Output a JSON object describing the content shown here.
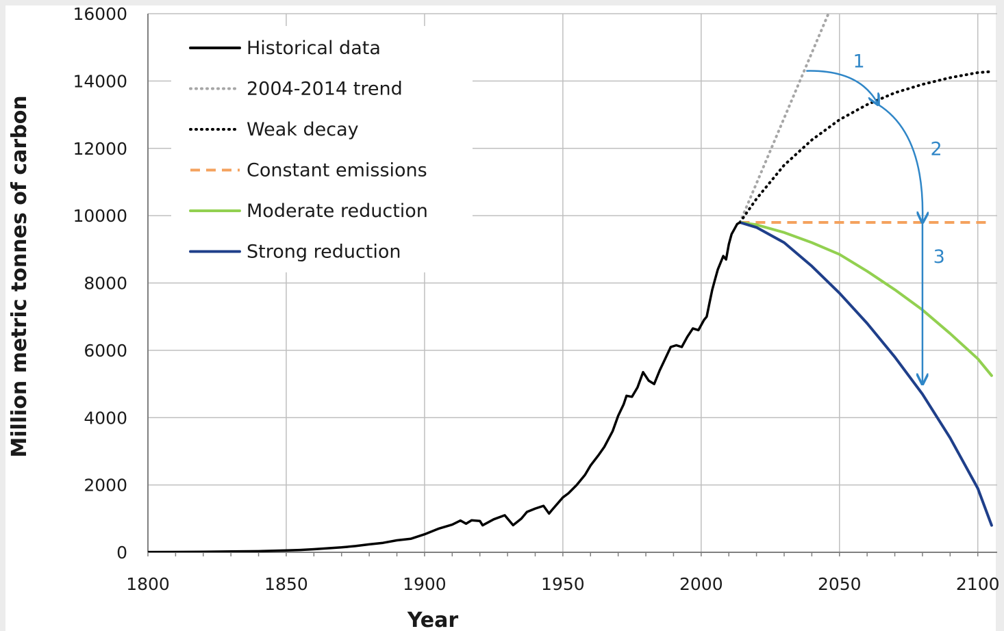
{
  "chart_data": {
    "type": "line",
    "title": "",
    "xlabel": "Year",
    "ylabel": "Million metric tonnes of carbon",
    "xlim": [
      1800,
      2107
    ],
    "ylim": [
      0,
      16000
    ],
    "x_ticks": [
      1800,
      1850,
      1900,
      1950,
      2000,
      2050,
      2100
    ],
    "y_ticks": [
      0,
      2000,
      4000,
      6000,
      8000,
      10000,
      12000,
      14000,
      16000
    ],
    "grid": true,
    "legend_position": "top-left",
    "series": [
      {
        "name": "Historical data",
        "style": "solid",
        "color": "#000000",
        "points": [
          [
            1800,
            8
          ],
          [
            1810,
            10
          ],
          [
            1820,
            14
          ],
          [
            1830,
            24
          ],
          [
            1840,
            33
          ],
          [
            1850,
            54
          ],
          [
            1855,
            70
          ],
          [
            1860,
            91
          ],
          [
            1865,
            120
          ],
          [
            1870,
            147
          ],
          [
            1875,
            185
          ],
          [
            1880,
            236
          ],
          [
            1885,
            280
          ],
          [
            1890,
            356
          ],
          [
            1895,
            400
          ],
          [
            1900,
            534
          ],
          [
            1905,
            700
          ],
          [
            1910,
            821
          ],
          [
            1913,
            943
          ],
          [
            1915,
            850
          ],
          [
            1917,
            950
          ],
          [
            1920,
            932
          ],
          [
            1921,
            800
          ],
          [
            1925,
            980
          ],
          [
            1929,
            1100
          ],
          [
            1932,
            805
          ],
          [
            1935,
            1000
          ],
          [
            1937,
            1200
          ],
          [
            1940,
            1300
          ],
          [
            1943,
            1380
          ],
          [
            1945,
            1150
          ],
          [
            1946,
            1250
          ],
          [
            1950,
            1630
          ],
          [
            1952,
            1750
          ],
          [
            1955,
            2000
          ],
          [
            1958,
            2300
          ],
          [
            1960,
            2577
          ],
          [
            1963,
            2900
          ],
          [
            1965,
            3130
          ],
          [
            1968,
            3600
          ],
          [
            1970,
            4053
          ],
          [
            1972,
            4400
          ],
          [
            1973,
            4650
          ],
          [
            1975,
            4620
          ],
          [
            1977,
            4900
          ],
          [
            1979,
            5350
          ],
          [
            1981,
            5100
          ],
          [
            1983,
            5000
          ],
          [
            1985,
            5400
          ],
          [
            1987,
            5750
          ],
          [
            1989,
            6100
          ],
          [
            1991,
            6150
          ],
          [
            1993,
            6100
          ],
          [
            1995,
            6400
          ],
          [
            1997,
            6650
          ],
          [
            1999,
            6600
          ],
          [
            2001,
            6900
          ],
          [
            2002,
            7000
          ],
          [
            2003,
            7400
          ],
          [
            2004,
            7800
          ],
          [
            2005,
            8100
          ],
          [
            2006,
            8400
          ],
          [
            2007,
            8600
          ],
          [
            2008,
            8800
          ],
          [
            2009,
            8700
          ],
          [
            2010,
            9150
          ],
          [
            2011,
            9450
          ],
          [
            2012,
            9600
          ],
          [
            2013,
            9750
          ],
          [
            2014,
            9800
          ]
        ]
      },
      {
        "name": "2004-2014 trend",
        "style": "dotted",
        "color": "#a6a6a6",
        "points": [
          [
            2014,
            9800
          ],
          [
            2046,
            16000
          ]
        ]
      },
      {
        "name": "Weak decay",
        "style": "dotted",
        "color": "#000000",
        "points": [
          [
            2014,
            9800
          ],
          [
            2020,
            10500
          ],
          [
            2030,
            11500
          ],
          [
            2040,
            12250
          ],
          [
            2050,
            12850
          ],
          [
            2060,
            13300
          ],
          [
            2070,
            13650
          ],
          [
            2080,
            13900
          ],
          [
            2090,
            14100
          ],
          [
            2100,
            14250
          ],
          [
            2105,
            14280
          ]
        ]
      },
      {
        "name": "Constant emissions",
        "style": "dashed",
        "color": "#f4a25e",
        "points": [
          [
            2014,
            9800
          ],
          [
            2105,
            9800
          ]
        ]
      },
      {
        "name": "Moderate reduction",
        "style": "solid",
        "color": "#92d050",
        "points": [
          [
            2014,
            9800
          ],
          [
            2020,
            9730
          ],
          [
            2030,
            9500
          ],
          [
            2040,
            9200
          ],
          [
            2050,
            8850
          ],
          [
            2060,
            8350
          ],
          [
            2070,
            7800
          ],
          [
            2080,
            7200
          ],
          [
            2090,
            6500
          ],
          [
            2100,
            5750
          ],
          [
            2105,
            5250
          ]
        ]
      },
      {
        "name": "Strong reduction",
        "style": "solid",
        "color": "#1f3f8a",
        "points": [
          [
            2014,
            9800
          ],
          [
            2020,
            9650
          ],
          [
            2030,
            9200
          ],
          [
            2040,
            8500
          ],
          [
            2050,
            7700
          ],
          [
            2060,
            6800
          ],
          [
            2070,
            5800
          ],
          [
            2080,
            4700
          ],
          [
            2090,
            3400
          ],
          [
            2100,
            1900
          ],
          [
            2105,
            800
          ]
        ]
      }
    ],
    "annotations": [
      {
        "label": "1",
        "color": "#2f86c7",
        "from": [
          2038,
          14300
        ],
        "to": [
          2064,
          13300
        ],
        "label_at": [
          2057,
          14400
        ]
      },
      {
        "label": "2",
        "color": "#2f86c7",
        "from": [
          2064,
          13300
        ],
        "to": [
          2080,
          9800
        ],
        "label_at": [
          2085,
          11800
        ]
      },
      {
        "label": "3",
        "color": "#2f86c7",
        "from": [
          2080,
          9800
        ],
        "to": [
          2080,
          5000
        ],
        "label_at": [
          2086,
          8600
        ]
      }
    ]
  }
}
